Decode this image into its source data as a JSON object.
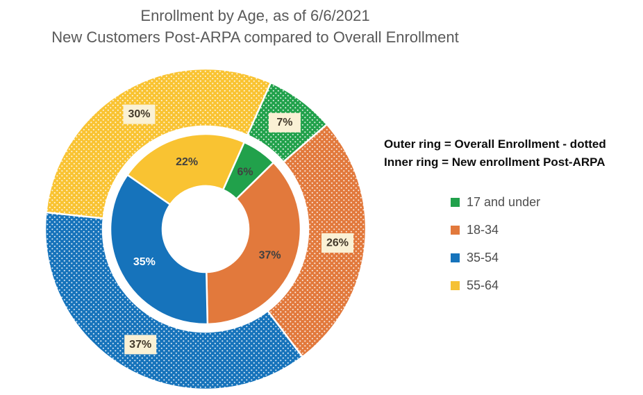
{
  "title": {
    "line1": "Enrollment by Age, as of 6/6/2021",
    "line2": "New Customers Post-ARPA compared to Overall Enrollment"
  },
  "annotation": {
    "line1": "Outer ring = Overall Enrollment - dotted",
    "line2": "Inner ring = New enrollment Post-ARPA"
  },
  "legend": {
    "items": [
      {
        "label": "17 and under",
        "color": "#21A14B"
      },
      {
        "label": "18-34",
        "color": "#E2793C"
      },
      {
        "label": "35-54",
        "color": "#1673BB"
      },
      {
        "label": "55-64",
        "color": "#F5C136"
      }
    ]
  },
  "theme": {
    "title_color": "#595959",
    "annotation_color": "#0d0d0d",
    "legend_text_color": "#4d4d4d",
    "background": "#ffffff"
  },
  "chart_data": {
    "type": "pie",
    "subtype": "doughnut-double-ring",
    "title": "Enrollment by Age, as of 6/6/2021",
    "subtitle": "New Customers Post-ARPA compared to Overall Enrollment",
    "categories": [
      "17 and under",
      "18-34",
      "35-54",
      "55-64"
    ],
    "colors": [
      "#21A14B",
      "#E2793C",
      "#1673BB",
      "#F9C332"
    ],
    "rotation_deg": 24,
    "direction": "clockwise",
    "legend_position": "right",
    "slice_border_color": "#FFFFFF",
    "label_box_fill": "#FAF1D5",
    "label_box_text_color": "#43392B",
    "rings": [
      {
        "name": "New enrollment Post-ARPA",
        "position": "inner",
        "fill_style": "solid",
        "values": [
          6,
          37,
          35,
          22
        ],
        "labels": [
          "6%",
          "37%",
          "35%",
          "22%"
        ],
        "label_text_colors": [
          "#404040",
          "#404040",
          "#FFFFFF",
          "#404040"
        ],
        "boxed_labels": false
      },
      {
        "name": "Overall Enrollment",
        "position": "outer",
        "fill_style": "dotted",
        "values": [
          7,
          26,
          37,
          30
        ],
        "labels": [
          "7%",
          "26%",
          "37%",
          "30%"
        ],
        "label_text_colors": [
          "#43392B",
          "#43392B",
          "#43392B",
          "#43392B"
        ],
        "boxed_labels": true
      }
    ]
  }
}
